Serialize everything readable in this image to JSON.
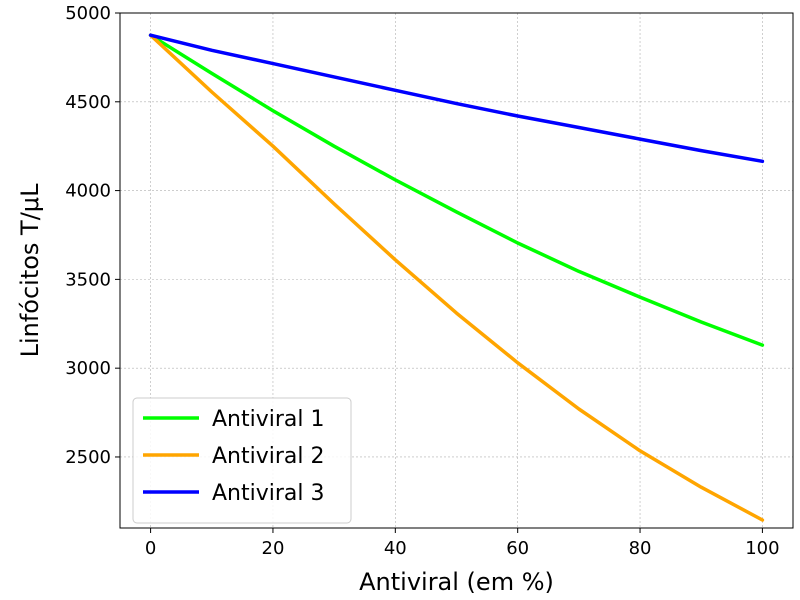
{
  "chart_data": {
    "type": "line",
    "xlabel": "Antiviral (em %)",
    "ylabel": "Linfócitos T/μL",
    "xlim": [
      -5,
      105
    ],
    "ylim": [
      2100,
      5000
    ],
    "x_ticks": [
      0,
      20,
      40,
      60,
      80,
      100
    ],
    "y_ticks": [
      2500,
      3000,
      3500,
      4000,
      4500,
      5000
    ],
    "grid": true,
    "legend_position": "lower-left",
    "x": [
      0,
      10,
      20,
      30,
      40,
      50,
      60,
      70,
      80,
      90,
      100
    ],
    "series": [
      {
        "name": "Antiviral 1",
        "color": "#00ff00",
        "values": [
          4875,
          4660,
          4450,
          4250,
          4060,
          3880,
          3705,
          3545,
          3400,
          3260,
          3130
        ]
      },
      {
        "name": "Antiviral 2",
        "color": "#ffa500",
        "values": [
          4875,
          4555,
          4250,
          3925,
          3610,
          3310,
          3030,
          2770,
          2535,
          2330,
          2145
        ]
      },
      {
        "name": "Antiviral 3",
        "color": "#0000ff",
        "values": [
          4875,
          4790,
          4715,
          4640,
          4565,
          4490,
          4420,
          4355,
          4290,
          4225,
          4165
        ]
      }
    ]
  }
}
